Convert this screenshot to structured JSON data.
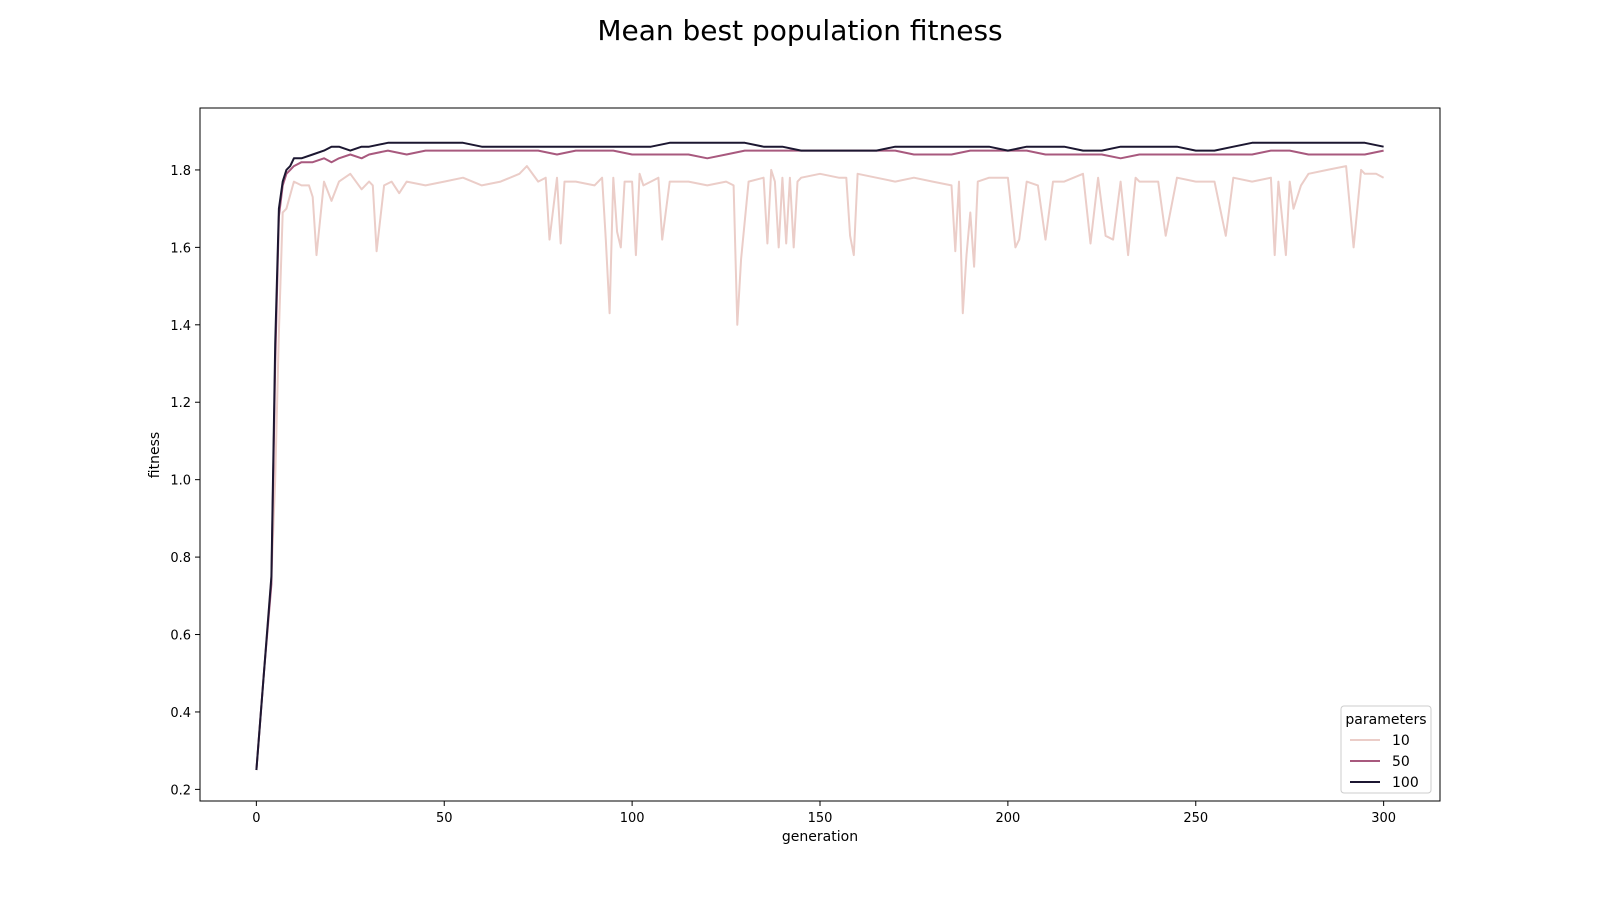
{
  "chart_data": {
    "type": "line",
    "title": "Mean best population fitness",
    "xlabel": "generation",
    "ylabel": "fitness",
    "xlim": [
      -15,
      315
    ],
    "ylim": [
      0.17,
      1.96
    ],
    "x_ticks": [
      0,
      50,
      100,
      150,
      200,
      250,
      300
    ],
    "y_ticks": [
      0.2,
      0.4,
      0.6,
      0.8,
      1.0,
      1.2,
      1.4,
      1.6,
      1.8
    ],
    "x_tick_labels": [
      "0",
      "50",
      "100",
      "150",
      "200",
      "250",
      "300"
    ],
    "y_tick_labels": [
      "0.2",
      "0.4",
      "0.6",
      "0.8",
      "1.0",
      "1.2",
      "1.4",
      "1.6",
      "1.8"
    ],
    "grid": false,
    "legend": {
      "title": "parameters",
      "position": "lower-right"
    },
    "series": [
      {
        "name": "10",
        "color": "#ebcdc8",
        "x": [
          0,
          2,
          4,
          5,
          6,
          7,
          8,
          10,
          12,
          14,
          15,
          16,
          18,
          20,
          22,
          25,
          28,
          30,
          31,
          32,
          34,
          36,
          38,
          40,
          45,
          50,
          55,
          60,
          65,
          70,
          72,
          75,
          77,
          78,
          80,
          81,
          82,
          85,
          90,
          92,
          93,
          94,
          95,
          96,
          97,
          98,
          100,
          101,
          102,
          103,
          105,
          107,
          108,
          110,
          115,
          120,
          125,
          127,
          128,
          129,
          131,
          135,
          136,
          137,
          138,
          139,
          140,
          141,
          142,
          143,
          144,
          145,
          150,
          155,
          157,
          158,
          159,
          160,
          165,
          170,
          175,
          180,
          185,
          186,
          187,
          188,
          189,
          190,
          191,
          192,
          195,
          200,
          202,
          203,
          205,
          208,
          210,
          212,
          215,
          220,
          222,
          224,
          226,
          228,
          230,
          232,
          234,
          235,
          240,
          242,
          245,
          250,
          255,
          258,
          260,
          265,
          270,
          271,
          272,
          274,
          275,
          276,
          278,
          280,
          285,
          290,
          292,
          294,
          295,
          298,
          300
        ],
        "y": [
          0.25,
          0.5,
          0.75,
          1.0,
          1.38,
          1.69,
          1.7,
          1.77,
          1.76,
          1.76,
          1.73,
          1.58,
          1.77,
          1.72,
          1.77,
          1.79,
          1.75,
          1.77,
          1.76,
          1.59,
          1.76,
          1.77,
          1.74,
          1.77,
          1.76,
          1.77,
          1.78,
          1.76,
          1.77,
          1.79,
          1.81,
          1.77,
          1.78,
          1.62,
          1.78,
          1.61,
          1.77,
          1.77,
          1.76,
          1.78,
          1.62,
          1.43,
          1.78,
          1.64,
          1.6,
          1.77,
          1.77,
          1.58,
          1.79,
          1.76,
          1.77,
          1.78,
          1.62,
          1.77,
          1.77,
          1.76,
          1.77,
          1.76,
          1.4,
          1.57,
          1.77,
          1.78,
          1.61,
          1.8,
          1.77,
          1.6,
          1.78,
          1.61,
          1.78,
          1.6,
          1.77,
          1.78,
          1.79,
          1.78,
          1.78,
          1.63,
          1.58,
          1.79,
          1.78,
          1.77,
          1.78,
          1.77,
          1.76,
          1.59,
          1.77,
          1.43,
          1.58,
          1.69,
          1.55,
          1.77,
          1.78,
          1.78,
          1.6,
          1.62,
          1.77,
          1.76,
          1.62,
          1.77,
          1.77,
          1.79,
          1.61,
          1.78,
          1.63,
          1.62,
          1.77,
          1.58,
          1.78,
          1.77,
          1.77,
          1.63,
          1.78,
          1.77,
          1.77,
          1.63,
          1.78,
          1.77,
          1.78,
          1.58,
          1.77,
          1.58,
          1.77,
          1.7,
          1.76,
          1.79,
          1.8,
          1.81,
          1.6,
          1.8,
          1.79,
          1.79,
          1.78
        ]
      },
      {
        "name": "50",
        "color": "#a8597e",
        "x": [
          0,
          2,
          4,
          5,
          6,
          7,
          8,
          9,
          10,
          12,
          15,
          18,
          20,
          22,
          25,
          28,
          30,
          35,
          40,
          45,
          50,
          55,
          60,
          65,
          70,
          75,
          80,
          85,
          90,
          95,
          100,
          105,
          110,
          115,
          120,
          125,
          130,
          135,
          140,
          145,
          150,
          155,
          160,
          165,
          170,
          175,
          180,
          185,
          190,
          195,
          200,
          205,
          210,
          215,
          220,
          225,
          230,
          235,
          240,
          245,
          250,
          255,
          260,
          265,
          270,
          275,
          280,
          285,
          290,
          295,
          300
        ],
        "y": [
          0.25,
          0.5,
          0.73,
          1.3,
          1.68,
          1.76,
          1.79,
          1.8,
          1.81,
          1.82,
          1.82,
          1.83,
          1.82,
          1.83,
          1.84,
          1.83,
          1.84,
          1.85,
          1.84,
          1.85,
          1.85,
          1.85,
          1.85,
          1.85,
          1.85,
          1.85,
          1.84,
          1.85,
          1.85,
          1.85,
          1.84,
          1.84,
          1.84,
          1.84,
          1.83,
          1.84,
          1.85,
          1.85,
          1.85,
          1.85,
          1.85,
          1.85,
          1.85,
          1.85,
          1.85,
          1.84,
          1.84,
          1.84,
          1.85,
          1.85,
          1.85,
          1.85,
          1.84,
          1.84,
          1.84,
          1.84,
          1.83,
          1.84,
          1.84,
          1.84,
          1.84,
          1.84,
          1.84,
          1.84,
          1.85,
          1.85,
          1.84,
          1.84,
          1.84,
          1.84,
          1.85
        ]
      },
      {
        "name": "100",
        "color": "#1c1731",
        "x": [
          0,
          2,
          4,
          5,
          6,
          7,
          8,
          9,
          10,
          12,
          15,
          18,
          20,
          22,
          25,
          28,
          30,
          35,
          40,
          45,
          50,
          55,
          60,
          65,
          70,
          75,
          80,
          85,
          90,
          95,
          100,
          105,
          110,
          115,
          120,
          125,
          130,
          135,
          140,
          145,
          150,
          155,
          160,
          165,
          170,
          175,
          180,
          185,
          190,
          195,
          200,
          205,
          210,
          215,
          220,
          225,
          230,
          235,
          240,
          245,
          250,
          255,
          260,
          265,
          270,
          275,
          280,
          285,
          290,
          295,
          300
        ],
        "y": [
          0.25,
          0.5,
          0.75,
          1.35,
          1.7,
          1.77,
          1.8,
          1.81,
          1.83,
          1.83,
          1.84,
          1.85,
          1.86,
          1.86,
          1.85,
          1.86,
          1.86,
          1.87,
          1.87,
          1.87,
          1.87,
          1.87,
          1.86,
          1.86,
          1.86,
          1.86,
          1.86,
          1.86,
          1.86,
          1.86,
          1.86,
          1.86,
          1.87,
          1.87,
          1.87,
          1.87,
          1.87,
          1.86,
          1.86,
          1.85,
          1.85,
          1.85,
          1.85,
          1.85,
          1.86,
          1.86,
          1.86,
          1.86,
          1.86,
          1.86,
          1.85,
          1.86,
          1.86,
          1.86,
          1.85,
          1.85,
          1.86,
          1.86,
          1.86,
          1.86,
          1.85,
          1.85,
          1.86,
          1.87,
          1.87,
          1.87,
          1.87,
          1.87,
          1.87,
          1.87,
          1.86
        ]
      }
    ]
  }
}
